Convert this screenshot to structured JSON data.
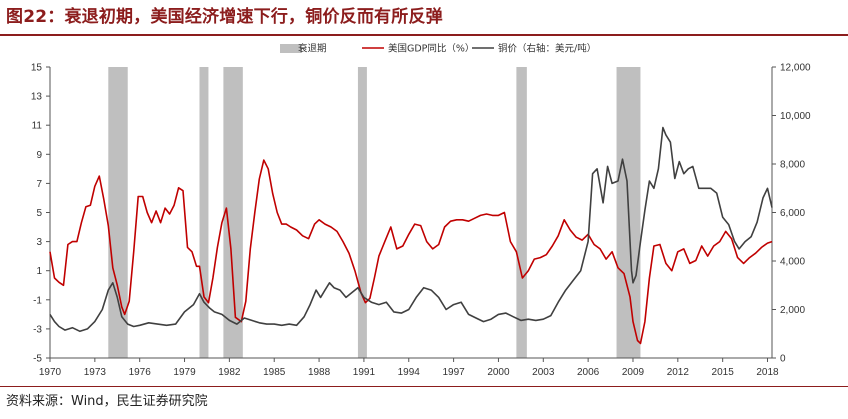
{
  "title": "图22：衰退初期，美国经济增速下行，铜价反而有所反弹",
  "source": "资料来源：Wind，民生证券研究院",
  "colors": {
    "title": "#8c1d1d",
    "recession": "#bfbfbf",
    "gdp": "#c00000",
    "copper": "#404040"
  },
  "chart_data": {
    "type": "line",
    "legend": [
      "衰退期",
      "美国GDP同比（%）",
      "铜价（右轴：美元/吨）"
    ],
    "legend_position": "top-right",
    "grid": false,
    "x_ticks": [
      "1970",
      "1973",
      "1976",
      "1979",
      "1982",
      "1985",
      "1988",
      "1991",
      "1994",
      "1997",
      "2000",
      "2003",
      "2006",
      "2009",
      "2012",
      "2015",
      "2018"
    ],
    "xlim": [
      1970,
      2018.3
    ],
    "y_left": {
      "lim": [
        -5,
        15
      ],
      "ticks": [
        -5,
        -3,
        -1,
        1,
        3,
        5,
        7,
        9,
        11,
        13,
        15
      ]
    },
    "y_right": {
      "lim": [
        0,
        12000
      ],
      "ticks": [
        "0",
        "2,000",
        "4,000",
        "6,000",
        "8,000",
        "10,000",
        "12,000"
      ]
    },
    "recessions": [
      [
        1973.9,
        1975.2
      ],
      [
        1980.0,
        1980.6
      ],
      [
        1981.6,
        1982.9
      ],
      [
        1990.6,
        1991.2
      ],
      [
        2001.2,
        2001.9
      ],
      [
        2007.9,
        2009.5
      ]
    ],
    "series": [
      {
        "name": "美国GDP同比（%）",
        "axis": "left",
        "x": [
          1970.0,
          1970.3,
          1970.6,
          1970.9,
          1971.2,
          1971.5,
          1971.8,
          1972.1,
          1972.4,
          1972.7,
          1973.0,
          1973.3,
          1973.6,
          1973.9,
          1974.2,
          1974.5,
          1974.8,
          1975.0,
          1975.3,
          1975.6,
          1975.9,
          1976.2,
          1976.5,
          1976.8,
          1977.1,
          1977.4,
          1977.7,
          1978.0,
          1978.3,
          1978.6,
          1978.9,
          1979.2,
          1979.5,
          1979.8,
          1980.0,
          1980.3,
          1980.6,
          1980.9,
          1981.2,
          1981.5,
          1981.8,
          1982.1,
          1982.4,
          1982.8,
          1983.1,
          1983.4,
          1983.7,
          1984.0,
          1984.3,
          1984.6,
          1984.9,
          1985.2,
          1985.5,
          1985.8,
          1986.1,
          1986.5,
          1986.9,
          1987.3,
          1987.7,
          1988.0,
          1988.4,
          1988.8,
          1989.2,
          1989.6,
          1990.0,
          1990.4,
          1990.8,
          1991.1,
          1991.4,
          1991.7,
          1992.0,
          1992.4,
          1992.8,
          1993.2,
          1993.6,
          1994.0,
          1994.4,
          1994.8,
          1995.2,
          1995.6,
          1996.0,
          1996.4,
          1996.8,
          1997.2,
          1997.6,
          1998.0,
          1998.4,
          1998.8,
          1999.2,
          1999.6,
          2000.0,
          2000.4,
          2000.8,
          2001.2,
          2001.6,
          2002.0,
          2002.4,
          2002.8,
          2003.2,
          2003.6,
          2004.0,
          2004.4,
          2004.8,
          2005.2,
          2005.6,
          2006.0,
          2006.4,
          2006.8,
          2007.2,
          2007.6,
          2008.0,
          2008.4,
          2008.8,
          2009.0,
          2009.3,
          2009.5,
          2009.8,
          2010.1,
          2010.4,
          2010.8,
          2011.2,
          2011.6,
          2012.0,
          2012.4,
          2012.8,
          2013.2,
          2013.6,
          2014.0,
          2014.4,
          2014.8,
          2015.2,
          2015.6,
          2016.0,
          2016.4,
          2016.8,
          2017.2,
          2017.6,
          2018.0,
          2018.3
        ],
        "values": [
          2.3,
          0.5,
          0.2,
          0.0,
          2.8,
          3.0,
          3.0,
          4.3,
          5.4,
          5.5,
          6.8,
          7.5,
          5.9,
          4.1,
          1.2,
          0.0,
          -1.5,
          -2.0,
          -1.1,
          2.3,
          6.1,
          6.1,
          5.0,
          4.3,
          5.1,
          4.3,
          5.3,
          4.9,
          5.5,
          6.7,
          6.5,
          2.6,
          2.3,
          1.3,
          1.3,
          -0.8,
          -1.2,
          0.5,
          2.6,
          4.3,
          5.3,
          2.5,
          -2.2,
          -2.5,
          -1.1,
          2.5,
          5.0,
          7.3,
          8.6,
          8.0,
          6.3,
          5.0,
          4.2,
          4.2,
          4.0,
          3.8,
          3.4,
          3.2,
          4.2,
          4.5,
          4.2,
          4.0,
          3.7,
          3.0,
          2.2,
          1.0,
          -0.5,
          -1.2,
          -0.9,
          0.5,
          2.0,
          3.0,
          4.0,
          2.5,
          2.7,
          3.5,
          4.2,
          4.1,
          3.0,
          2.5,
          2.8,
          4.0,
          4.4,
          4.5,
          4.5,
          4.4,
          4.6,
          4.8,
          4.9,
          4.8,
          4.8,
          5.0,
          3.0,
          2.3,
          0.5,
          1.0,
          1.8,
          1.9,
          2.1,
          2.7,
          3.4,
          4.5,
          3.8,
          3.3,
          3.1,
          3.5,
          2.8,
          2.5,
          1.8,
          2.3,
          1.2,
          0.8,
          -0.8,
          -2.5,
          -3.8,
          -4.0,
          -2.5,
          0.5,
          2.7,
          2.8,
          1.5,
          1.0,
          2.3,
          2.5,
          1.5,
          1.7,
          2.7,
          2.0,
          2.7,
          3.0,
          3.7,
          3.2,
          1.9,
          1.5,
          1.9,
          2.2,
          2.6,
          2.9,
          3.0
        ]
      },
      {
        "name": "铜价（右轴：美元/吨）",
        "axis": "right",
        "x": [
          1970.0,
          1970.3,
          1970.6,
          1971.0,
          1971.5,
          1972.0,
          1972.5,
          1973.0,
          1973.5,
          1973.9,
          1974.2,
          1974.5,
          1974.8,
          1975.2,
          1975.6,
          1976.0,
          1976.6,
          1977.2,
          1977.8,
          1978.4,
          1979.0,
          1979.6,
          1980.0,
          1980.3,
          1980.7,
          1981.0,
          1981.5,
          1982.0,
          1982.5,
          1983.0,
          1983.5,
          1984.0,
          1984.5,
          1985.0,
          1985.5,
          1986.0,
          1986.5,
          1987.0,
          1987.4,
          1987.8,
          1988.1,
          1988.4,
          1988.7,
          1989.0,
          1989.4,
          1989.8,
          1990.2,
          1990.6,
          1991.0,
          1991.5,
          1992.0,
          1992.5,
          1993.0,
          1993.5,
          1994.0,
          1994.5,
          1995.0,
          1995.5,
          1996.0,
          1996.5,
          1997.0,
          1997.5,
          1998.0,
          1998.5,
          1999.0,
          1999.5,
          2000.0,
          2000.5,
          2001.0,
          2001.5,
          2002.0,
          2002.5,
          2003.0,
          2003.5,
          2004.0,
          2004.5,
          2005.0,
          2005.5,
          2006.0,
          2006.3,
          2006.6,
          2007.0,
          2007.3,
          2007.6,
          2008.0,
          2008.3,
          2008.6,
          2008.9,
          2009.0,
          2009.2,
          2009.5,
          2009.8,
          2010.1,
          2010.4,
          2010.7,
          2011.0,
          2011.2,
          2011.5,
          2011.8,
          2012.1,
          2012.4,
          2012.7,
          2013.0,
          2013.4,
          2013.8,
          2014.2,
          2014.6,
          2015.0,
          2015.4,
          2015.8,
          2016.1,
          2016.5,
          2016.9,
          2017.3,
          2017.7,
          2018.0,
          2018.3
        ],
        "values": [
          1800,
          1500,
          1300,
          1150,
          1250,
          1100,
          1200,
          1500,
          2000,
          2800,
          3100,
          2500,
          1700,
          1400,
          1300,
          1350,
          1450,
          1400,
          1350,
          1400,
          1900,
          2200,
          2650,
          2300,
          2050,
          1900,
          1800,
          1550,
          1400,
          1650,
          1550,
          1450,
          1400,
          1400,
          1350,
          1400,
          1350,
          1700,
          2200,
          2800,
          2500,
          2800,
          3100,
          2900,
          2800,
          2500,
          2700,
          2900,
          2500,
          2300,
          2200,
          2300,
          1900,
          1850,
          2000,
          2500,
          2900,
          2800,
          2500,
          2000,
          2200,
          2300,
          1800,
          1650,
          1500,
          1600,
          1800,
          1850,
          1700,
          1550,
          1600,
          1550,
          1600,
          1750,
          2300,
          2800,
          3200,
          3600,
          4800,
          7600,
          7800,
          6400,
          7900,
          7200,
          7300,
          8200,
          7300,
          3600,
          3100,
          3400,
          4800,
          6100,
          7300,
          7000,
          7800,
          9500,
          9200,
          8900,
          7400,
          8100,
          7600,
          7800,
          7900,
          7000,
          7000,
          7000,
          6800,
          5800,
          5500,
          4800,
          4500,
          4800,
          5000,
          5600,
          6600,
          7000,
          6200
        ]
      }
    ]
  }
}
